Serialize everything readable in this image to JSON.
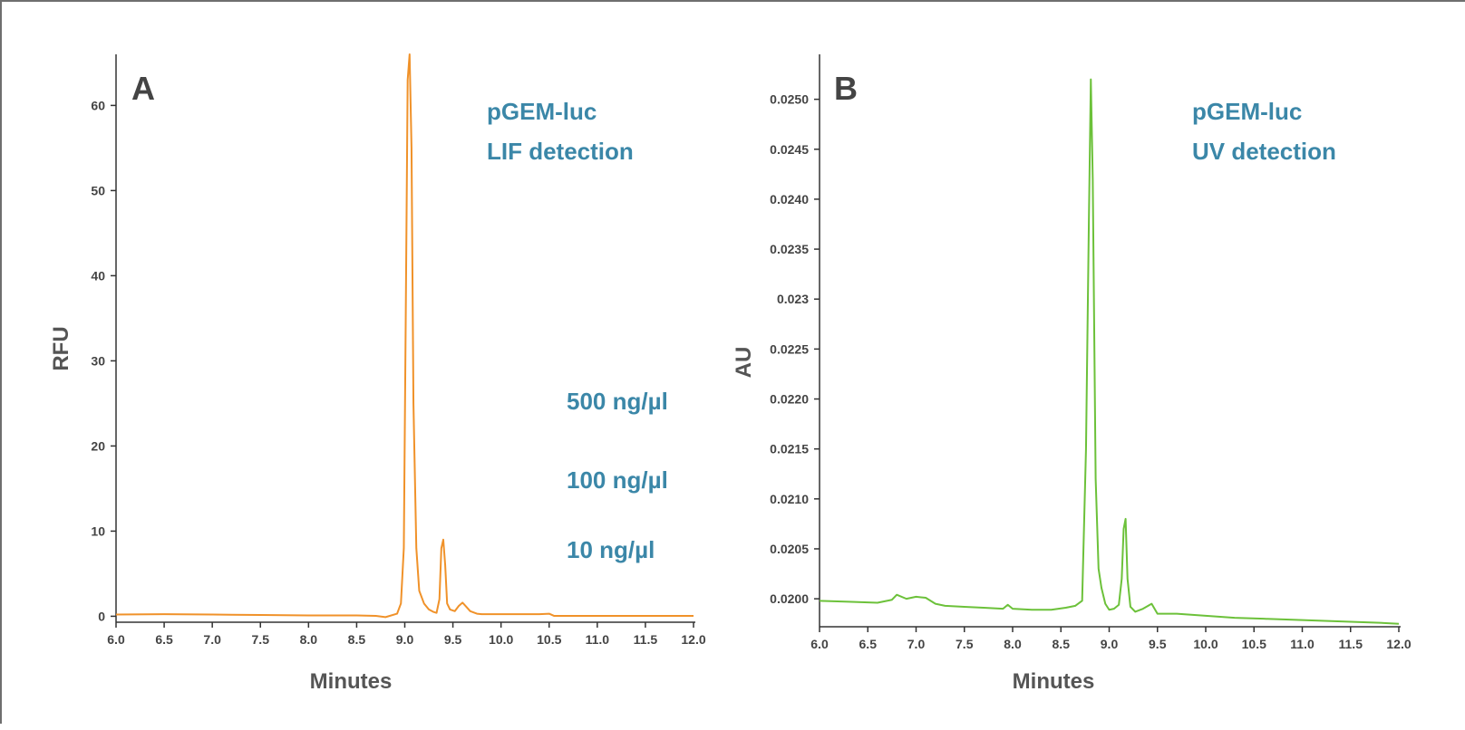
{
  "chart_data": [
    {
      "type": "line",
      "panel_label": "A",
      "xlabel": "Minutes",
      "ylabel": "RFU",
      "xlim": [
        6.0,
        12.0
      ],
      "ylim": [
        -0.7,
        66
      ],
      "x_ticks": [
        "6.0",
        "6.5",
        "7.0",
        "7.5",
        "8.0",
        "8.5",
        "9.0",
        "9.5",
        "10.0",
        "10.5",
        "11.0",
        "11.5",
        "12.0"
      ],
      "y_ticks": [
        "0",
        "10",
        "20",
        "30",
        "40",
        "50",
        "60"
      ],
      "grid": false,
      "annotations": [
        "pGEM-luc",
        "LIF detection",
        "500 ng/µl",
        "100 ng/µl",
        "10 ng/µl"
      ],
      "series": [
        {
          "color": "#f0922a",
          "x": [
            6.0,
            6.5,
            7.0,
            7.5,
            8.0,
            8.5,
            8.7,
            8.8,
            8.92,
            8.96,
            8.99,
            9.01,
            9.03,
            9.05,
            9.07,
            9.09,
            9.12,
            9.15,
            9.2,
            9.25,
            9.3,
            9.33,
            9.36,
            9.38,
            9.4,
            9.42,
            9.44,
            9.47,
            9.52,
            9.56,
            9.6,
            9.64,
            9.68,
            9.75,
            9.8,
            9.9,
            10.0,
            10.2,
            10.4,
            10.5,
            10.55,
            10.8,
            11.0,
            11.5,
            12.0
          ],
          "y": [
            0.2,
            0.25,
            0.2,
            0.15,
            0.1,
            0.1,
            0.05,
            -0.1,
            0.3,
            1.5,
            8,
            35,
            63,
            66,
            55,
            25,
            8,
            3,
            1.5,
            0.8,
            0.5,
            0.4,
            2,
            8,
            9,
            6,
            1.5,
            0.8,
            0.6,
            1.2,
            1.6,
            1.1,
            0.6,
            0.3,
            0.25,
            0.25,
            0.25,
            0.25,
            0.25,
            0.3,
            0.05,
            0.05,
            0.05,
            0.05,
            0.05
          ]
        }
      ]
    },
    {
      "type": "line",
      "panel_label": "B",
      "xlabel": "Minutes",
      "ylabel": "AU",
      "xlim": [
        6.0,
        12.0
      ],
      "ylim": [
        0.01972,
        0.02545
      ],
      "x_ticks": [
        "6.0",
        "6.5",
        "7.0",
        "7.5",
        "8.0",
        "8.5",
        "9.0",
        "9.5",
        "10.0",
        "10.5",
        "11.0",
        "11.5",
        "12.0"
      ],
      "y_ticks": [
        {
          "value": 0.02,
          "label": "0.0200"
        },
        {
          "value": 0.0205,
          "label": "0.0205"
        },
        {
          "value": 0.021,
          "label": "0.0210"
        },
        {
          "value": 0.0215,
          "label": "0.0215"
        },
        {
          "value": 0.022,
          "label": "0.0220"
        },
        {
          "value": 0.0225,
          "label": "0.0225"
        },
        {
          "value": 0.023,
          "label": "0.023"
        },
        {
          "value": 0.0235,
          "label": "0.0235"
        },
        {
          "value": 0.024,
          "label": "0.0240"
        },
        {
          "value": 0.0245,
          "label": "0.0245"
        },
        {
          "value": 0.025,
          "label": "0.0250"
        }
      ],
      "grid": false,
      "annotations": [
        "pGEM-luc",
        "UV detection"
      ],
      "series": [
        {
          "color": "#6cc13a",
          "x": [
            6.0,
            6.3,
            6.6,
            6.75,
            6.8,
            6.9,
            7.0,
            7.1,
            7.2,
            7.3,
            7.5,
            7.7,
            7.9,
            7.95,
            8.0,
            8.2,
            8.4,
            8.55,
            8.65,
            8.72,
            8.76,
            8.79,
            8.81,
            8.83,
            8.86,
            8.89,
            8.92,
            8.96,
            9.0,
            9.05,
            9.1,
            9.13,
            9.15,
            9.17,
            9.19,
            9.22,
            9.27,
            9.35,
            9.44,
            9.5,
            9.7,
            10.0,
            10.3,
            10.6,
            10.9,
            11.2,
            11.5,
            11.8,
            12.0
          ],
          "y": [
            0.01998,
            0.01997,
            0.01996,
            0.01999,
            0.02004,
            0.02,
            0.02002,
            0.02001,
            0.01995,
            0.01993,
            0.01992,
            0.01991,
            0.0199,
            0.01994,
            0.0199,
            0.01989,
            0.01989,
            0.01991,
            0.01993,
            0.01998,
            0.0215,
            0.0238,
            0.0252,
            0.0242,
            0.0212,
            0.0203,
            0.02011,
            0.01995,
            0.01989,
            0.0199,
            0.01994,
            0.0202,
            0.0207,
            0.0208,
            0.0202,
            0.01992,
            0.01987,
            0.0199,
            0.01995,
            0.01985,
            0.01985,
            0.01983,
            0.01981,
            0.0198,
            0.01979,
            0.01978,
            0.01977,
            0.01976,
            0.01975
          ]
        }
      ]
    }
  ]
}
